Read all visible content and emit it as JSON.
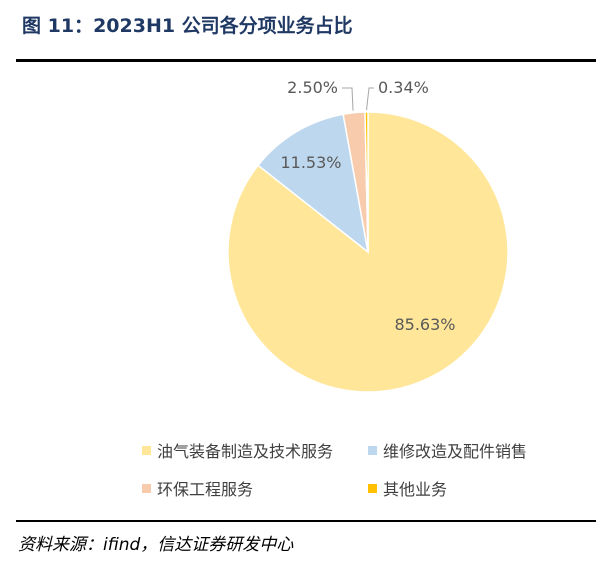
{
  "figure": {
    "label": "图 11：",
    "title": "2023H1 公司各分项业务占比"
  },
  "source": "资料来源：ifind，信达证券研发中心",
  "chart_data": {
    "type": "pie",
    "categories": [
      "油气装备制造及技术服务",
      "维修改造及配件销售",
      "环保工程服务",
      "其他业务"
    ],
    "values": [
      85.63,
      11.53,
      2.5,
      0.34
    ],
    "value_labels": [
      "85.63%",
      "11.53%",
      "2.50%",
      "0.34%"
    ],
    "colors": [
      "#ffe699",
      "#bdd7ee",
      "#f8cbad",
      "#ffc000"
    ],
    "label_color": "#595959",
    "legend_position": "bottom",
    "start_angle": "12 o'clock, clockwise"
  }
}
